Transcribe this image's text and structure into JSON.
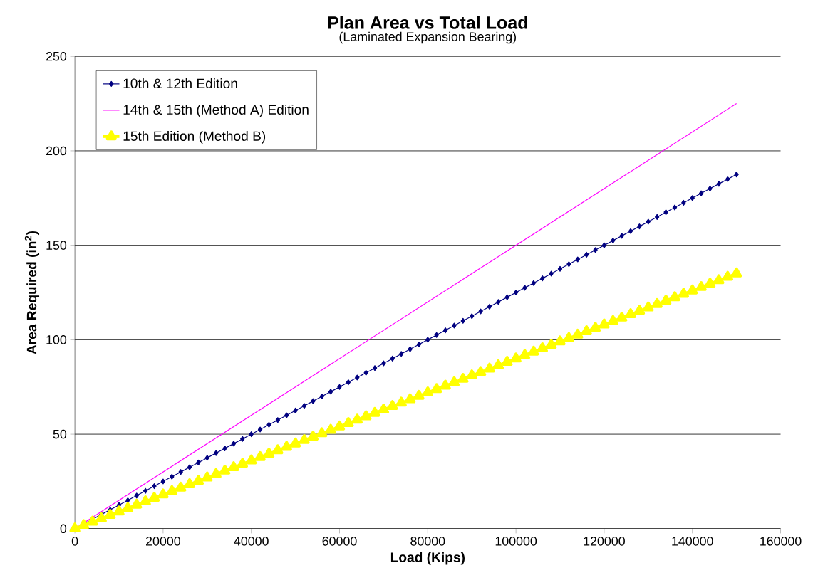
{
  "chart_data": {
    "type": "line",
    "title": "Plan Area vs Total Load",
    "subtitle": "(Laminated Expansion Bearing)",
    "xlabel": "Load (Kips)",
    "ylabel": "Area Required (in$^{2}$)",
    "x": [
      0,
      2000,
      4000,
      6000,
      8000,
      10000,
      12000,
      14000,
      16000,
      18000,
      20000,
      22000,
      24000,
      26000,
      28000,
      30000,
      32000,
      34000,
      36000,
      38000,
      40000,
      42000,
      44000,
      46000,
      48000,
      50000,
      52000,
      54000,
      56000,
      58000,
      60000,
      62000,
      64000,
      66000,
      68000,
      70000,
      72000,
      74000,
      76000,
      78000,
      80000,
      82000,
      84000,
      86000,
      88000,
      90000,
      92000,
      94000,
      96000,
      98000,
      100000,
      102000,
      104000,
      106000,
      108000,
      110000,
      112000,
      114000,
      116000,
      118000,
      120000,
      122000,
      124000,
      126000,
      128000,
      130000,
      132000,
      134000,
      136000,
      138000,
      140000,
      142000,
      144000,
      146000,
      148000,
      150000
    ],
    "series": [
      {
        "name": "10th & 12th Edition",
        "color": "#000080",
        "marker": "diamond",
        "values": [
          0,
          2.5,
          5,
          7.5,
          10,
          12.5,
          15,
          17.5,
          20,
          22.5,
          25,
          27.5,
          30,
          32.5,
          35,
          37.5,
          40,
          42.5,
          45,
          47.5,
          50,
          52.5,
          55,
          57.5,
          60,
          62.5,
          65,
          67.5,
          70,
          72.5,
          75,
          77.5,
          80,
          82.5,
          85,
          87.5,
          90,
          92.5,
          95,
          97.5,
          100,
          102.5,
          105,
          107.5,
          110,
          112.5,
          115,
          117.5,
          120,
          122.5,
          125,
          127.5,
          130,
          132.5,
          135,
          137.5,
          140,
          142.5,
          145,
          147.5,
          150,
          152.5,
          155,
          157.5,
          160,
          162.5,
          165,
          167.5,
          170,
          172.5,
          175,
          177.5,
          180,
          182.5,
          185,
          187.5
        ]
      },
      {
        "name": "14th & 15th (Method A) Edition",
        "color": "#ff00ff",
        "marker": "none",
        "x": [
          0,
          150000
        ],
        "values": [
          0,
          225
        ]
      },
      {
        "name": "15th Edition (Method B)",
        "color": "#ffff00",
        "marker": "triangle",
        "values": [
          0,
          1.8,
          3.6,
          5.4,
          7.2,
          9,
          10.8,
          12.6,
          14.4,
          16.2,
          18,
          19.8,
          21.6,
          23.4,
          25.2,
          27,
          28.8,
          30.6,
          32.4,
          34.2,
          36,
          37.8,
          39.6,
          41.4,
          43.2,
          45,
          46.8,
          48.6,
          50.4,
          52.2,
          54,
          55.8,
          57.6,
          59.4,
          61.2,
          63,
          64.8,
          66.6,
          68.4,
          70.2,
          72,
          73.8,
          75.6,
          77.4,
          79.2,
          81,
          82.8,
          84.6,
          86.4,
          88.2,
          90,
          91.8,
          93.6,
          95.4,
          97.2,
          99,
          100.8,
          102.6,
          104.4,
          106.2,
          108,
          109.8,
          111.6,
          113.4,
          115.2,
          117,
          118.8,
          120.6,
          122.4,
          124.2,
          126,
          127.8,
          129.6,
          131.4,
          133.2,
          135
        ]
      }
    ],
    "xlim": [
      0,
      160000
    ],
    "ylim": [
      0,
      250
    ],
    "xticks": [
      0,
      20000,
      40000,
      60000,
      80000,
      100000,
      120000,
      140000,
      160000
    ],
    "yticks": [
      0,
      50,
      100,
      150,
      200,
      250
    ],
    "grid": "y",
    "legend": "top left"
  }
}
